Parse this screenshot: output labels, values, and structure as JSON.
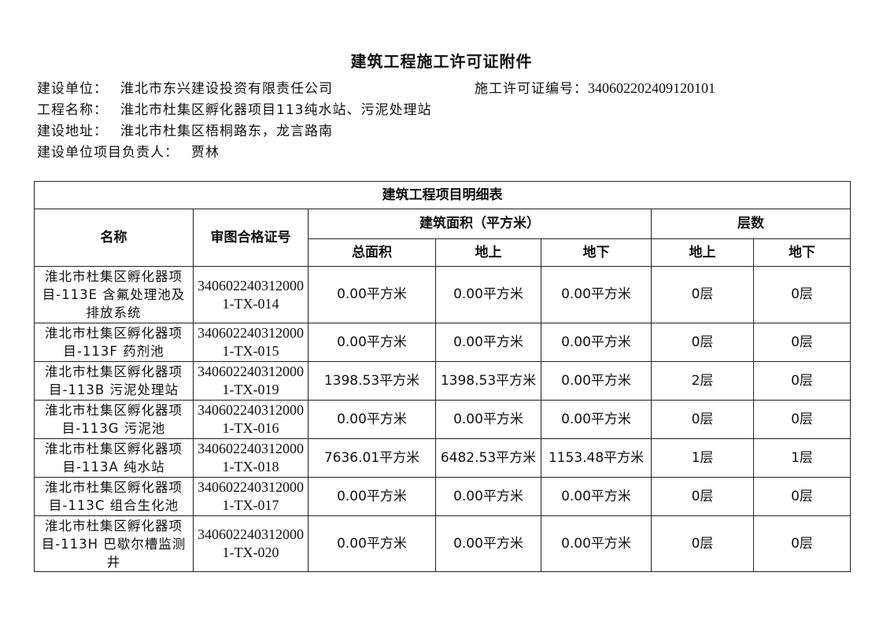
{
  "title": "建筑工程施工许可证附件",
  "info": {
    "unit_label": "建设单位：",
    "unit": "淮北市东兴建设投资有限责任公司",
    "permit_label": "施工许可证编号：",
    "permit": "340602202409120101",
    "project_label": "工程名称：",
    "project": "淮北市杜集区孵化器项目113纯水站、污泥处理站",
    "address_label": "建设地址：",
    "address": "淮北市杜集区梧桐路东，龙言路南",
    "leader_label": "建设单位项目负责人：",
    "leader": "贾林"
  },
  "table": {
    "caption": "建筑工程项目明细表",
    "headers": {
      "name": "名称",
      "code": "审图合格证号",
      "area": "建筑面积（平方米）",
      "floors": "层数",
      "total": "总面积",
      "above": "地上",
      "below": "地下",
      "f_above": "地上",
      "f_below": "地下"
    },
    "rows": [
      {
        "name": "淮北市杜集区孵化器项目-113E 含氟处理池及排放系统",
        "code": "3406022403120001-TX-014",
        "total": "0.00平方米",
        "above": "0.00平方米",
        "below": "0.00平方米",
        "f_above": "0层",
        "f_below": "0层"
      },
      {
        "name": "淮北市杜集区孵化器项目-113F 药剂池",
        "code": "3406022403120001-TX-015",
        "total": "0.00平方米",
        "above": "0.00平方米",
        "below": "0.00平方米",
        "f_above": "0层",
        "f_below": "0层"
      },
      {
        "name": "淮北市杜集区孵化器项目-113B 污泥处理站",
        "code": "3406022403120001-TX-019",
        "total": "1398.53平方米",
        "above": "1398.53平方米",
        "below": "0.00平方米",
        "f_above": "2层",
        "f_below": "0层"
      },
      {
        "name": "淮北市杜集区孵化器项目-113G 污泥池",
        "code": "3406022403120001-TX-016",
        "total": "0.00平方米",
        "above": "0.00平方米",
        "below": "0.00平方米",
        "f_above": "0层",
        "f_below": "0层"
      },
      {
        "name": "淮北市杜集区孵化器项目-113A 纯水站",
        "code": "3406022403120001-TX-018",
        "total": "7636.01平方米",
        "above": "6482.53平方米",
        "below": "1153.48平方米",
        "f_above": "1层",
        "f_below": "1层"
      },
      {
        "name": "淮北市杜集区孵化器项目-113C 组合生化池",
        "code": "3406022403120001-TX-017",
        "total": "0.00平方米",
        "above": "0.00平方米",
        "below": "0.00平方米",
        "f_above": "0层",
        "f_below": "0层"
      },
      {
        "name": "淮北市杜集区孵化器项目-113H 巴歇尔槽监测井",
        "code": "3406022403120001-TX-020",
        "total": "0.00平方米",
        "above": "0.00平方米",
        "below": "0.00平方米",
        "f_above": "0层",
        "f_below": "0层"
      }
    ]
  }
}
